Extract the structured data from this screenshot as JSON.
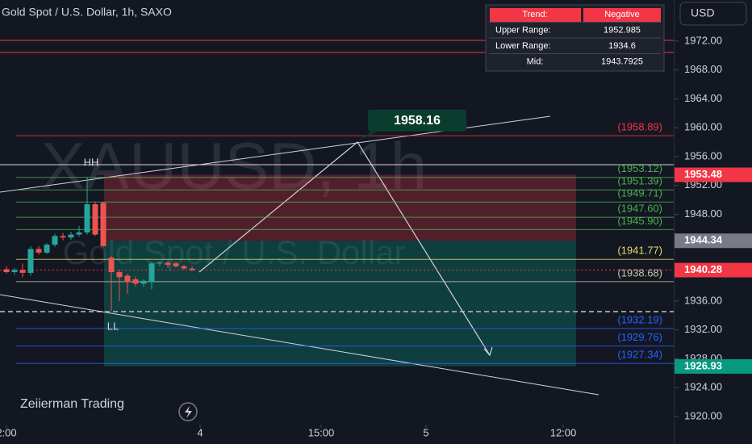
{
  "chart_data": {
    "type": "candlestick",
    "title": "Gold Spot / U.S. Dollar, 1h, SAXO",
    "currency": "USD",
    "watermark": "XAUUSD, 1h",
    "watermark_subtitle": "Gold Spot / U.S. Dollar",
    "brand": "Zeiierman Trading",
    "x": [
      0,
      1,
      2,
      3,
      4,
      5,
      6,
      7,
      8,
      9,
      10,
      11,
      12,
      13,
      14,
      15,
      16,
      17,
      18,
      19,
      20,
      21,
      22,
      23
    ],
    "open": [
      1940.4,
      1940.0,
      1940.3,
      1939.9,
      1943.2,
      1942.7,
      1943.8,
      1945.0,
      1944.8,
      1945.2,
      1945.5,
      1949.4,
      1949.6,
      1942.0,
      1940.0,
      1939.5,
      1939.0,
      1938.4,
      1938.6,
      1941.2,
      1941.3,
      1941.2,
      1940.8,
      1940.5
    ],
    "high": [
      1940.8,
      1940.6,
      1941.2,
      1943.6,
      1943.6,
      1944.0,
      1945.3,
      1945.4,
      1945.6,
      1946.4,
      1953.2,
      1949.8,
      1949.8,
      1942.2,
      1940.3,
      1939.8,
      1939.4,
      1939.0,
      1941.4,
      1941.5,
      1941.6,
      1941.4,
      1941.0,
      1940.8
    ],
    "low": [
      1939.8,
      1939.6,
      1939.3,
      1939.5,
      1942.4,
      1942.5,
      1943.5,
      1944.4,
      1944.5,
      1944.9,
      1945.2,
      1945.0,
      1943.4,
      1934.6,
      1936.0,
      1937.0,
      1938.0,
      1938.0,
      1937.6,
      1940.8,
      1940.6,
      1940.6,
      1940.3,
      1940.1
    ],
    "close": [
      1940.0,
      1940.3,
      1939.9,
      1943.2,
      1942.7,
      1943.8,
      1945.0,
      1944.8,
      1945.2,
      1945.5,
      1949.4,
      1945.2,
      1943.6,
      1940.0,
      1939.3,
      1938.6,
      1938.4,
      1938.8,
      1941.2,
      1941.3,
      1941.0,
      1940.8,
      1940.5,
      1940.3
    ],
    "up_color": "#26a69a",
    "down_color": "#ef5350",
    "xlim": [
      0,
      82
    ],
    "xticks": [
      {
        "value": 0,
        "label": "2:00"
      },
      {
        "value": 24,
        "label": "4"
      },
      {
        "value": 39,
        "label": "15:00"
      },
      {
        "value": 52,
        "label": "5"
      },
      {
        "value": 69,
        "label": "12:00"
      }
    ],
    "ylim": [
      1918.79,
      1977.7
    ],
    "yticks": [
      {
        "value": 1920,
        "label": "1920.00"
      },
      {
        "value": 1924,
        "label": "1924.00"
      },
      {
        "value": 1928,
        "label": "1928.00"
      },
      {
        "value": 1932,
        "label": "1932.00"
      },
      {
        "value": 1936,
        "label": "1936.00"
      },
      {
        "value": 1940,
        "label": "1940.00"
      },
      {
        "value": 1944,
        "label": "1944.00"
      },
      {
        "value": 1948,
        "label": "1948.00"
      },
      {
        "value": 1952,
        "label": "1952.00"
      },
      {
        "value": 1956,
        "label": "1956.00"
      },
      {
        "value": 1960,
        "label": "1960.00"
      },
      {
        "value": 1964,
        "label": "1964.00"
      },
      {
        "value": 1968,
        "label": "1968.00"
      },
      {
        "value": 1972,
        "label": "1972.00"
      }
    ],
    "levels": [
      {
        "value": 1958.89,
        "label": "(1958.89)",
        "color": "#f23645"
      },
      {
        "value": 1953.12,
        "label": "(1953.12)",
        "color": "#4caf50"
      },
      {
        "value": 1951.39,
        "label": "(1951.39)",
        "color": "#4caf50"
      },
      {
        "value": 1949.71,
        "label": "(1949.71)",
        "color": "#4caf50"
      },
      {
        "value": 1947.6,
        "label": "(1947.60)",
        "color": "#4caf50"
      },
      {
        "value": 1945.9,
        "label": "(1945.90)",
        "color": "#4caf50"
      },
      {
        "value": 1941.77,
        "label": "(1941.77)",
        "color": "#e6d96a"
      },
      {
        "value": 1938.68,
        "label": "(1938.68)",
        "color": "#c8c8a0"
      },
      {
        "value": 1932.19,
        "label": "(1932.19)",
        "color": "#2962ff"
      },
      {
        "value": 1929.76,
        "label": "(1929.76)",
        "color": "#2962ff"
      },
      {
        "value": 1927.34,
        "label": "(1927.34)",
        "color": "#2962ff"
      }
    ],
    "price_badges": [
      {
        "value": 1953.48,
        "color": "#f23645"
      },
      {
        "value": 1944.34,
        "color": "#787b86"
      },
      {
        "value": 1940.28,
        "color": "#f23645"
      },
      {
        "value": 1926.93,
        "color": "#089981"
      }
    ],
    "target": 1958.16,
    "swing_labels": [
      "HH",
      "LL"
    ],
    "trend_table": {
      "rows": [
        [
          "Trend:",
          "Negative"
        ],
        [
          "Upper Range:",
          1952.985
        ],
        [
          "Lower Range:",
          1934.6
        ],
        [
          "Mid:",
          1943.7925
        ]
      ]
    }
  }
}
